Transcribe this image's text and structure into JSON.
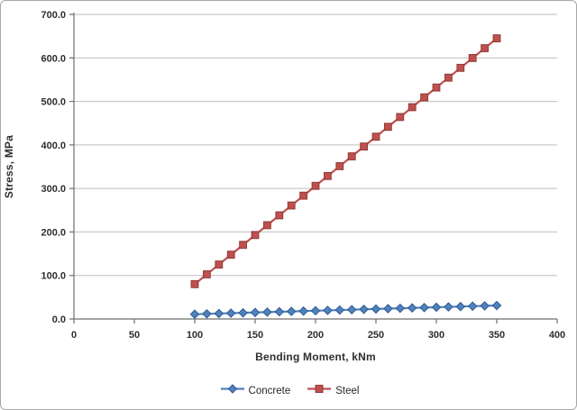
{
  "chart_data": {
    "type": "line",
    "title": "",
    "xlabel": "Bending Moment, kNm",
    "ylabel": "Stress, MPa",
    "xlim": [
      0,
      400
    ],
    "ylim": [
      0,
      700
    ],
    "grid": "horizontal",
    "legend_position": "bottom",
    "x_ticks": [
      0,
      50,
      100,
      150,
      200,
      250,
      300,
      350,
      400
    ],
    "x_tick_labels": [
      "0",
      "50",
      "100",
      "150",
      "200",
      "250",
      "300",
      "350",
      "400"
    ],
    "y_ticks": [
      0,
      100,
      200,
      300,
      400,
      500,
      600,
      700
    ],
    "y_tick_labels": [
      "0.0",
      "100.0",
      "200.0",
      "300.0",
      "400.0",
      "500.0",
      "600.0",
      "700.0"
    ],
    "x": [
      100,
      110,
      120,
      130,
      140,
      150,
      160,
      170,
      180,
      190,
      200,
      210,
      220,
      230,
      240,
      250,
      260,
      270,
      280,
      290,
      300,
      310,
      320,
      330,
      340,
      350
    ],
    "series": [
      {
        "name": "Concrete",
        "marker": "diamond",
        "color": "#4F81BD",
        "marker_border_color": "#2F5B93",
        "values": [
          11.0,
          11.8,
          12.6,
          13.4,
          14.2,
          15.0,
          15.8,
          16.6,
          17.4,
          18.2,
          19.0,
          19.8,
          20.6,
          21.4,
          22.2,
          23.0,
          23.8,
          24.6,
          25.4,
          26.2,
          27.0,
          27.8,
          28.6,
          29.4,
          30.2,
          31.0
        ]
      },
      {
        "name": "Steel",
        "marker": "square",
        "color": "#C0504D",
        "marker_border_color": "#8E3B38",
        "values": [
          80.0,
          102.6,
          125.2,
          147.8,
          170.4,
          193.0,
          215.6,
          238.2,
          260.8,
          283.4,
          306.0,
          328.6,
          351.2,
          373.8,
          396.4,
          419.0,
          441.6,
          464.2,
          486.8,
          509.4,
          532.0,
          554.6,
          577.2,
          599.8,
          622.4,
          645.0
        ]
      }
    ],
    "axis_color": "#6e6e6e",
    "gridline_color": "#bdbdbd"
  }
}
